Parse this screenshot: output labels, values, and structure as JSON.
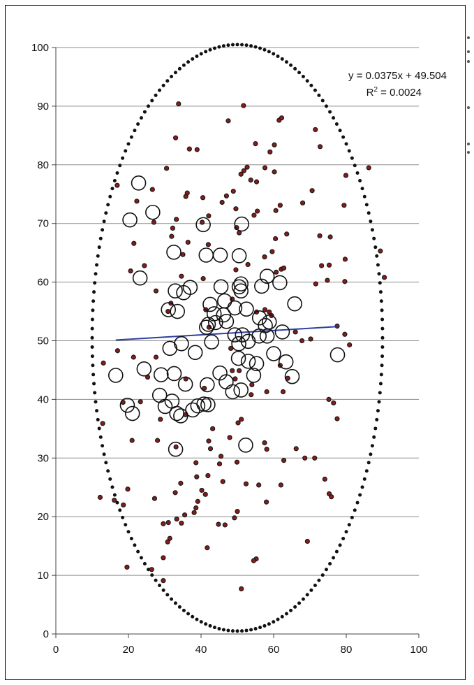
{
  "chart_data": {
    "type": "scatter",
    "title": "",
    "xlabel": "",
    "ylabel": "",
    "xlim": [
      0,
      100
    ],
    "ylim": [
      0,
      100
    ],
    "x_ticks": [
      0,
      20,
      40,
      60,
      80,
      100
    ],
    "y_ticks": [
      0,
      10,
      20,
      30,
      40,
      50,
      60,
      70,
      80,
      90,
      100
    ],
    "grid": "horizontal",
    "legend": "none",
    "trendline": {
      "equation": "y = 0.0375x + 49.504",
      "r2_prefix": "R",
      "r2_sup": "2",
      "r2_value": " = 0.0024",
      "slope": 0.0375,
      "intercept": 49.504,
      "x_range": [
        16.5,
        77.5
      ]
    },
    "ellipse": {
      "cx": 50,
      "cy": 50.5,
      "rx": 40,
      "ry": 50,
      "count": 200
    },
    "small_points": [
      [
        33.8,
        90.4
      ],
      [
        51.7,
        90.1
      ],
      [
        47.5,
        87.5
      ],
      [
        61.5,
        87.6
      ],
      [
        62.2,
        88
      ],
      [
        71.5,
        86
      ],
      [
        72.8,
        83.1
      ],
      [
        55,
        83.6
      ],
      [
        59,
        82.2
      ],
      [
        60.2,
        83.4
      ],
      [
        33,
        84.6
      ],
      [
        36.8,
        82.7
      ],
      [
        38.9,
        82.6
      ],
      [
        51.8,
        79
      ],
      [
        51,
        78.4
      ],
      [
        52.7,
        79.6
      ],
      [
        57.6,
        79.5
      ],
      [
        53.7,
        77.4
      ],
      [
        48.9,
        75.5
      ],
      [
        55.3,
        77.1
      ],
      [
        60.2,
        78.8
      ],
      [
        16.9,
        76.5
      ],
      [
        26.6,
        75.8
      ],
      [
        30.5,
        79.4
      ],
      [
        35.8,
        74.6
      ],
      [
        36.2,
        75.2
      ],
      [
        40.5,
        74.4
      ],
      [
        47,
        74.7
      ],
      [
        45.8,
        73.6
      ],
      [
        42.1,
        71.3
      ],
      [
        40.3,
        70.2
      ],
      [
        33.2,
        70.7
      ],
      [
        49.6,
        72.5
      ],
      [
        54.6,
        71.4
      ],
      [
        55.5,
        72.1
      ],
      [
        60.6,
        72.2
      ],
      [
        61.8,
        73.1
      ],
      [
        68,
        73.5
      ],
      [
        70.6,
        75.6
      ],
      [
        79.4,
        73.1
      ],
      [
        86.2,
        79.5
      ],
      [
        79.9,
        78.2
      ],
      [
        21.5,
        66.6
      ],
      [
        22.3,
        73.8
      ],
      [
        27,
        70.2
      ],
      [
        31.9,
        67.8
      ],
      [
        35,
        64.7
      ],
      [
        36.4,
        66.8
      ],
      [
        42,
        66.4
      ],
      [
        34.6,
        61
      ],
      [
        27.6,
        58.5
      ],
      [
        24.4,
        62.8
      ],
      [
        20.6,
        61.9
      ],
      [
        40.6,
        60.6
      ],
      [
        57.5,
        64.3
      ],
      [
        59.6,
        65.2
      ],
      [
        60.5,
        67.4
      ],
      [
        63.6,
        68.2
      ],
      [
        72.7,
        67.9
      ],
      [
        75.6,
        67.7
      ],
      [
        73.2,
        62.8
      ],
      [
        75.3,
        62.9
      ],
      [
        79.7,
        63.9
      ],
      [
        62.1,
        62.2
      ],
      [
        62.8,
        62.4
      ],
      [
        60.7,
        61.7
      ],
      [
        74.8,
        60.3
      ],
      [
        79.6,
        60.1
      ],
      [
        89.4,
        65.3
      ],
      [
        90.5,
        60.8
      ],
      [
        71.6,
        59.7
      ],
      [
        31.7,
        56.4
      ],
      [
        30.9,
        55
      ],
      [
        41.3,
        55.3
      ],
      [
        42.2,
        52.3
      ],
      [
        55.3,
        54.9
      ],
      [
        57.6,
        55.3
      ],
      [
        59.4,
        54.3
      ],
      [
        58.8,
        54.9
      ],
      [
        66,
        51.5
      ],
      [
        67.8,
        50
      ],
      [
        70.2,
        50.3
      ],
      [
        77.5,
        52.5
      ],
      [
        79.6,
        51.1
      ],
      [
        80.9,
        49.3
      ],
      [
        17,
        48.3
      ],
      [
        13.1,
        46.2
      ],
      [
        21.4,
        47.2
      ],
      [
        27.6,
        47.2
      ],
      [
        25.3,
        43.8
      ],
      [
        35.8,
        43.5
      ],
      [
        40.9,
        41.9
      ],
      [
        50.5,
        44.9
      ],
      [
        48.6,
        44.9
      ],
      [
        48.2,
        48.7
      ],
      [
        49.4,
        43.5
      ],
      [
        54,
        42.5
      ],
      [
        58.1,
        41.3
      ],
      [
        62.6,
        41.3
      ],
      [
        63.9,
        43.6
      ],
      [
        61.8,
        45.8
      ],
      [
        18.5,
        39.5
      ],
      [
        23.3,
        39.6
      ],
      [
        28.8,
        36.6
      ],
      [
        35.7,
        37.4
      ],
      [
        43.2,
        35
      ],
      [
        47.9,
        33.5
      ],
      [
        50.2,
        36
      ],
      [
        51.1,
        36.6
      ],
      [
        53.8,
        40.8
      ],
      [
        57.5,
        32.6
      ],
      [
        58.1,
        31.5
      ],
      [
        62.8,
        29.6
      ],
      [
        66.2,
        31.6
      ],
      [
        68.6,
        30
      ],
      [
        75.2,
        40
      ],
      [
        76.5,
        39.4
      ],
      [
        77.5,
        36.7
      ],
      [
        12.9,
        35.9
      ],
      [
        21,
        33
      ],
      [
        28,
        33
      ],
      [
        42.1,
        32.9
      ],
      [
        42.6,
        31.6
      ],
      [
        45.1,
        29
      ],
      [
        45.5,
        30.3
      ],
      [
        38.6,
        29.2
      ],
      [
        33.1,
        31.9
      ],
      [
        18.6,
        22
      ],
      [
        16.1,
        22.8
      ],
      [
        12.2,
        23.3
      ],
      [
        19.8,
        24.7
      ],
      [
        27.2,
        23.1
      ],
      [
        32.9,
        24.1
      ],
      [
        34.4,
        25.7
      ],
      [
        38.8,
        26.8
      ],
      [
        40.2,
        24.5
      ],
      [
        39.1,
        22.6
      ],
      [
        38.1,
        20.7
      ],
      [
        38.6,
        21.5
      ],
      [
        41.2,
        23.8
      ],
      [
        41.9,
        27
      ],
      [
        46,
        26
      ],
      [
        49.9,
        29.3
      ],
      [
        52.4,
        25.6
      ],
      [
        55.9,
        25.4
      ],
      [
        58,
        22.5
      ],
      [
        62,
        25.4
      ],
      [
        71.3,
        30
      ],
      [
        74.1,
        26.4
      ],
      [
        75.3,
        23.9
      ],
      [
        75.9,
        23.4
      ],
      [
        29.6,
        18.8
      ],
      [
        31,
        19
      ],
      [
        33.3,
        19.6
      ],
      [
        34.6,
        18.9
      ],
      [
        35.5,
        20.3
      ],
      [
        31.4,
        16.3
      ],
      [
        30.8,
        15.7
      ],
      [
        29.6,
        13
      ],
      [
        26.4,
        11
      ],
      [
        19.6,
        11.4
      ],
      [
        29.6,
        9.1
      ],
      [
        41.7,
        14.7
      ],
      [
        44.8,
        18.7
      ],
      [
        46.6,
        18.6
      ],
      [
        49.2,
        19.8
      ],
      [
        50,
        20.9
      ],
      [
        55.2,
        12.8
      ],
      [
        54.5,
        12.5
      ],
      [
        51.1,
        7.7
      ],
      [
        69.3,
        15.8
      ],
      [
        49.8,
        69.3
      ],
      [
        50.5,
        68.4
      ],
      [
        48.6,
        57.1
      ],
      [
        49.6,
        62.1
      ],
      [
        52.9,
        63
      ],
      [
        32.2,
        69.2
      ]
    ],
    "large_circles": [
      [
        22.8,
        76.9
      ],
      [
        26.7,
        71.9
      ],
      [
        20.4,
        70.6
      ],
      [
        40.6,
        69.8
      ],
      [
        51.2,
        69.9
      ],
      [
        32.5,
        65.1
      ],
      [
        23.2,
        60.7
      ],
      [
        41.4,
        64.6
      ],
      [
        45.3,
        64.6
      ],
      [
        50.5,
        64.5
      ],
      [
        37,
        59.1
      ],
      [
        32.9,
        58.5
      ],
      [
        35.2,
        58.2
      ],
      [
        45.5,
        59.2
      ],
      [
        50.5,
        59.2
      ],
      [
        51,
        59.7
      ],
      [
        51,
        58.5
      ],
      [
        56.7,
        59.3
      ],
      [
        58.2,
        61
      ],
      [
        61.7,
        59.9
      ],
      [
        31,
        55.3
      ],
      [
        33.5,
        55
      ],
      [
        42.5,
        56.2
      ],
      [
        43.6,
        54.6
      ],
      [
        46.2,
        54.4
      ],
      [
        46.5,
        56.8
      ],
      [
        49.3,
        55.6
      ],
      [
        52.5,
        55.4
      ],
      [
        44,
        53.1
      ],
      [
        42,
        52.8
      ],
      [
        47,
        53.3
      ],
      [
        41.5,
        52.3
      ],
      [
        56.1,
        53.9
      ],
      [
        58.8,
        53.2
      ],
      [
        57.7,
        52.6
      ],
      [
        62.4,
        51.5
      ],
      [
        65.8,
        56.3
      ],
      [
        31.4,
        48.7
      ],
      [
        34.6,
        49.5
      ],
      [
        38.4,
        48
      ],
      [
        42.9,
        49.8
      ],
      [
        49.3,
        51
      ],
      [
        51.4,
        51
      ],
      [
        50.4,
        49.5
      ],
      [
        53,
        49.9
      ],
      [
        56,
        50.8
      ],
      [
        58.2,
        50.8
      ],
      [
        60,
        47.8
      ],
      [
        16.5,
        44.1
      ],
      [
        24.3,
        45.2
      ],
      [
        29,
        44.2
      ],
      [
        32.6,
        44.4
      ],
      [
        35.7,
        42.6
      ],
      [
        41.7,
        42.5
      ],
      [
        45.2,
        44.5
      ],
      [
        46.9,
        43
      ],
      [
        50.3,
        47
      ],
      [
        53,
        46.5
      ],
      [
        55.3,
        46.1
      ],
      [
        54.5,
        44.1
      ],
      [
        63.4,
        46.4
      ],
      [
        65.1,
        43.9
      ],
      [
        77.6,
        47.6
      ],
      [
        28.6,
        40.7
      ],
      [
        30.1,
        38.8
      ],
      [
        32,
        39.7
      ],
      [
        33.3,
        37.6
      ],
      [
        34.4,
        37.2
      ],
      [
        37.7,
        38.2
      ],
      [
        39.1,
        38.9
      ],
      [
        40.8,
        39.2
      ],
      [
        41.9,
        39.1
      ],
      [
        48.7,
        41.3
      ],
      [
        51,
        41.6
      ],
      [
        19.7,
        39
      ],
      [
        21.1,
        37.6
      ],
      [
        33,
        31.5
      ],
      [
        52.3,
        32.2
      ]
    ]
  }
}
